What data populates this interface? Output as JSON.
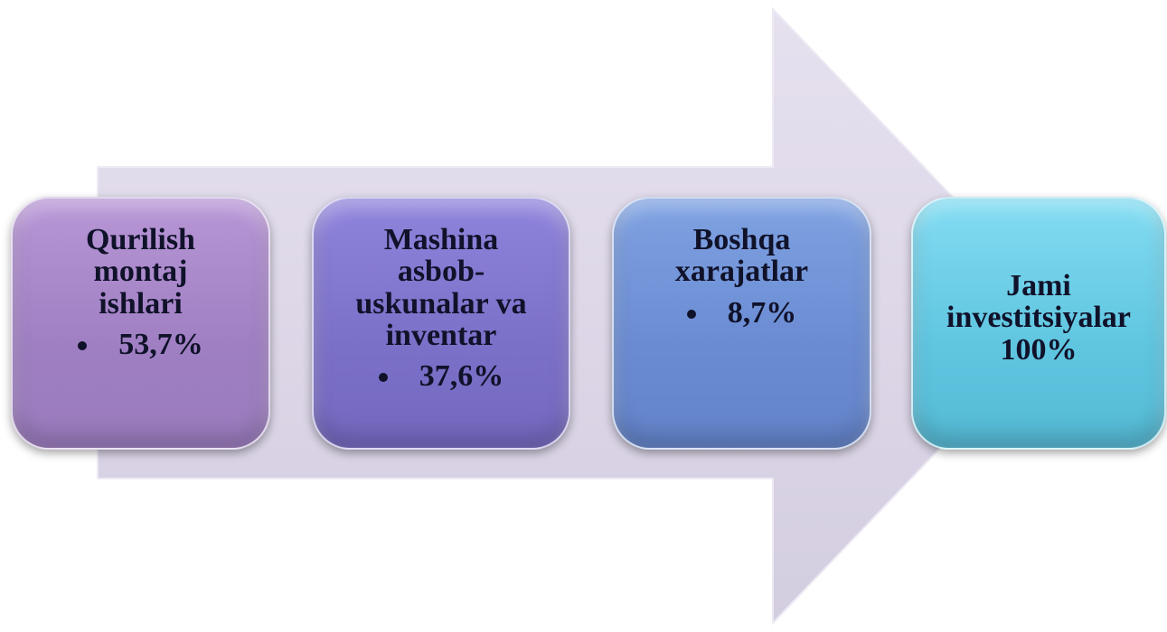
{
  "nodes": [
    {
      "title": "Qurilish montaj ishlari",
      "items": [
        "53,7%"
      ]
    },
    {
      "title": "Mashina asbob-uskunalar va inventar",
      "items": [
        "37,6%"
      ]
    },
    {
      "title": "Boshqa xarajatlar",
      "items": [
        "8,7%"
      ]
    },
    {
      "title": "Jami investitsiyalar 100%"
    }
  ]
}
